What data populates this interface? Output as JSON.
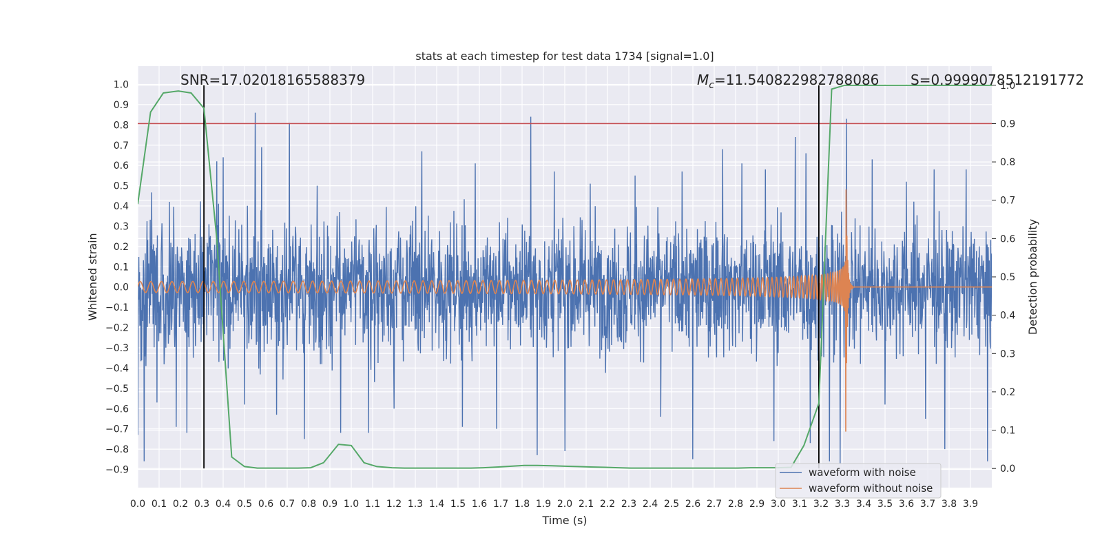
{
  "chart_data": {
    "type": "line",
    "title": "stats at each timestep for test data 1734 [signal=1.0]",
    "xlabel": "Time (s)",
    "ylabel": "Whitened strain",
    "y2label": "Detection probability",
    "xlim": [
      0.0,
      4.0
    ],
    "ylim": [
      -0.99,
      1.09
    ],
    "y2lim": [
      -0.05,
      1.05
    ],
    "x_ticks": [
      "0.0",
      "0.1",
      "0.2",
      "0.3",
      "0.4",
      "0.5",
      "0.6",
      "0.7",
      "0.8",
      "0.9",
      "1.0",
      "1.1",
      "1.2",
      "1.3",
      "1.4",
      "1.5",
      "1.6",
      "1.7",
      "1.8",
      "1.9",
      "2.0",
      "2.1",
      "2.2",
      "2.3",
      "2.4",
      "2.5",
      "2.6",
      "2.7",
      "2.8",
      "2.9",
      "3.0",
      "3.1",
      "3.2",
      "3.3",
      "3.4",
      "3.5",
      "3.6",
      "3.7",
      "3.8",
      "3.9"
    ],
    "y_ticks": [
      "1.0",
      "0.9",
      "0.8",
      "0.7",
      "0.6",
      "0.5",
      "0.4",
      "0.3",
      "0.2",
      "0.1",
      "0.0",
      "−0.1",
      "−0.2",
      "−0.3",
      "−0.4",
      "−0.5",
      "−0.6",
      "−0.7",
      "−0.8",
      "−0.9"
    ],
    "y2_ticks": [
      "1.0",
      "0.9",
      "0.8",
      "0.7",
      "0.6",
      "0.5",
      "0.4",
      "0.3",
      "0.2",
      "0.1",
      "0.0"
    ],
    "grid": true,
    "legend_position": "lower-right",
    "annotations": {
      "snr": "SNR=17.02018165588379",
      "mc_symbol": "M",
      "mc_sub": "c",
      "mc_value": "=11.540822982788086",
      "s": "S=0.9999078512191772"
    },
    "vlines_x": [
      0.31,
      3.19
    ],
    "threshold_y2": 0.9,
    "colors": {
      "noise": "#4c72b0",
      "clean": "#dd8452",
      "prob": "#55a868",
      "threshold": "#c44e52",
      "vline": "#000000",
      "axes_bg": "#eaeaf2",
      "grid": "#ffffff"
    },
    "series": [
      {
        "name": "waveform with noise",
        "kind": "noise",
        "envelope": 0.4,
        "spikes": [
          [
            0.0,
            -0.73
          ],
          [
            0.03,
            -0.86
          ],
          [
            0.09,
            -0.57
          ],
          [
            0.18,
            -0.69
          ],
          [
            0.23,
            -0.72
          ],
          [
            0.31,
            -0.41
          ],
          [
            0.37,
            0.62
          ],
          [
            0.4,
            0.64
          ],
          [
            0.5,
            -0.58
          ],
          [
            0.55,
            0.86
          ],
          [
            0.58,
            0.69
          ],
          [
            0.65,
            -0.63
          ],
          [
            0.71,
            0.81
          ],
          [
            0.78,
            -0.75
          ],
          [
            0.84,
            0.5
          ],
          [
            0.95,
            -0.72
          ],
          [
            1.08,
            -0.72
          ],
          [
            1.2,
            -0.6
          ],
          [
            1.33,
            0.67
          ],
          [
            1.52,
            -0.69
          ],
          [
            1.58,
            0.61
          ],
          [
            1.68,
            -0.7
          ],
          [
            1.84,
            0.84
          ],
          [
            1.87,
            -0.83
          ],
          [
            1.95,
            0.57
          ],
          [
            2.0,
            -0.81
          ],
          [
            2.12,
            0.51
          ],
          [
            2.33,
            0.55
          ],
          [
            2.45,
            -0.64
          ],
          [
            2.55,
            0.57
          ],
          [
            2.6,
            -0.85
          ],
          [
            2.74,
            0.68
          ],
          [
            2.83,
            0.61
          ],
          [
            2.94,
            0.58
          ],
          [
            2.98,
            -0.76
          ],
          [
            3.08,
            0.74
          ],
          [
            3.13,
            0.66
          ],
          [
            3.15,
            -0.77
          ],
          [
            3.24,
            -0.86
          ],
          [
            3.29,
            -0.87
          ],
          [
            3.32,
            0.83
          ],
          [
            3.44,
            0.63
          ],
          [
            3.5,
            -0.58
          ],
          [
            3.6,
            0.52
          ],
          [
            3.69,
            -0.65
          ],
          [
            3.73,
            0.58
          ],
          [
            3.78,
            -0.8
          ],
          [
            3.88,
            0.58
          ],
          [
            3.98,
            -0.86
          ]
        ]
      },
      {
        "name": "waveform without noise",
        "kind": "chirp",
        "merger_time": 3.32,
        "start_freq_hz": 20,
        "start_amp": 0.027
      },
      {
        "name": "detection probability",
        "axis": "y2",
        "x": [
          0.0,
          0.06,
          0.12,
          0.19,
          0.25,
          0.31,
          0.37,
          0.44,
          0.5,
          0.56,
          0.62,
          0.69,
          0.75,
          0.81,
          0.87,
          0.94,
          1.0,
          1.06,
          1.12,
          1.19,
          1.25,
          1.31,
          1.37,
          1.44,
          1.5,
          1.56,
          1.62,
          1.69,
          1.75,
          1.81,
          1.87,
          1.94,
          2.0,
          2.06,
          2.12,
          2.19,
          2.25,
          2.31,
          2.37,
          2.44,
          2.5,
          2.56,
          2.62,
          2.69,
          2.75,
          2.81,
          2.87,
          2.94,
          3.0,
          3.06,
          3.12,
          3.19,
          3.25,
          3.31,
          3.37,
          3.44,
          3.5,
          3.56,
          3.62,
          3.69,
          3.75,
          3.81,
          3.87,
          3.94,
          4.0
        ],
        "values": [
          0.69,
          0.93,
          0.98,
          0.985,
          0.98,
          0.94,
          0.6,
          0.03,
          0.005,
          0.001,
          0.001,
          0.001,
          0.001,
          0.002,
          0.015,
          0.063,
          0.06,
          0.015,
          0.005,
          0.002,
          0.001,
          0.001,
          0.001,
          0.001,
          0.001,
          0.001,
          0.002,
          0.004,
          0.006,
          0.008,
          0.008,
          0.007,
          0.006,
          0.005,
          0.004,
          0.003,
          0.002,
          0.001,
          0.001,
          0.001,
          0.001,
          0.001,
          0.001,
          0.001,
          0.001,
          0.001,
          0.002,
          0.002,
          0.002,
          0.003,
          0.06,
          0.17,
          0.99,
          1.0,
          1.0,
          1.0,
          1.0,
          1.0,
          1.0,
          1.0,
          1.0,
          1.0,
          1.0,
          1.0,
          1.0
        ]
      }
    ]
  }
}
